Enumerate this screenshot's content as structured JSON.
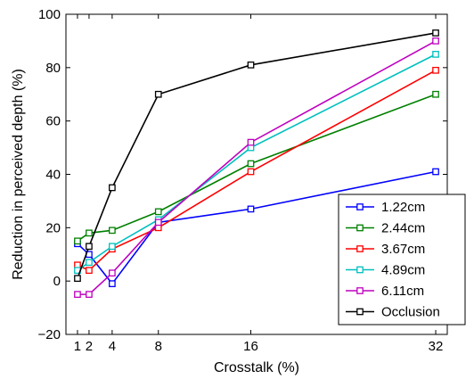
{
  "chart_data": {
    "type": "line",
    "xlabel": "Crosstalk (%)",
    "ylabel": "Reduction in perceived depth (%)",
    "x": [
      1,
      2,
      4,
      8,
      16,
      32
    ],
    "x_ticks": [
      1,
      2,
      4,
      8,
      16,
      32
    ],
    "x_tick_labels": [
      "1",
      "2",
      "4",
      "8",
      "16",
      "32"
    ],
    "y_ticks": [
      -20,
      0,
      20,
      40,
      60,
      80,
      100
    ],
    "y_tick_labels": [
      "−20",
      "0",
      "20",
      "40",
      "60",
      "80",
      "100"
    ],
    "xlim": [
      0,
      33
    ],
    "ylim": [
      -20,
      100
    ],
    "grid": false,
    "legend_position": "bottom-right",
    "marker": "square",
    "series": [
      {
        "name": "1.22cm",
        "color": "#0000ff",
        "values": [
          14,
          10,
          -1,
          22,
          27,
          41
        ]
      },
      {
        "name": "2.44cm",
        "color": "#008000",
        "values": [
          15,
          18,
          19,
          26,
          44,
          70
        ]
      },
      {
        "name": "3.67cm",
        "color": "#ff0000",
        "values": [
          6,
          4,
          12,
          20,
          41,
          79
        ]
      },
      {
        "name": "4.89cm",
        "color": "#00bfbf",
        "values": [
          4,
          7,
          13,
          23,
          50,
          85
        ]
      },
      {
        "name": "6.11cm",
        "color": "#bf00bf",
        "values": [
          -5,
          -5,
          3,
          22,
          52,
          90
        ]
      },
      {
        "name": "Occlusion",
        "color": "#000000",
        "values": [
          1,
          13,
          35,
          70,
          81,
          93
        ]
      }
    ]
  }
}
